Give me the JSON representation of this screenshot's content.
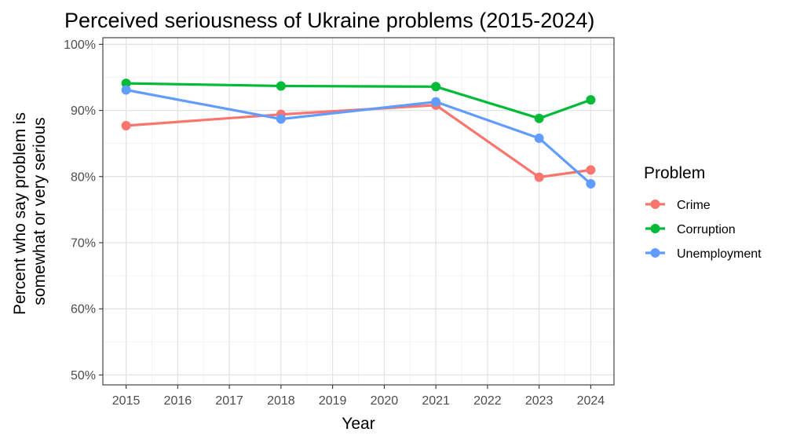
{
  "chart_data": {
    "type": "line",
    "title": "Perceived seriousness of Ukraine problems (2015-2024)",
    "xlabel": "Year",
    "ylabel_lines": [
      "Percent who say problem is",
      "somewhat or very serious"
    ],
    "x_ticks": [
      "2015",
      "2016",
      "2017",
      "2018",
      "2019",
      "2020",
      "2021",
      "2022",
      "2023",
      "2024"
    ],
    "y_ticks": [
      "50%",
      "60%",
      "70%",
      "80%",
      "90%",
      "100%"
    ],
    "xlim": [
      2014.55,
      2024.45
    ],
    "ylim": [
      0.485,
      1.01
    ],
    "grid": true,
    "legend": {
      "title": "Problem",
      "placement": "right"
    },
    "series": [
      {
        "name": "Crime",
        "color": "#F8766D",
        "x": [
          2015,
          2018,
          2021,
          2023,
          2024
        ],
        "values": [
          0.877,
          0.894,
          0.908,
          0.799,
          0.81
        ]
      },
      {
        "name": "Corruption",
        "color": "#00BA38",
        "x": [
          2015,
          2018,
          2021,
          2023,
          2024
        ],
        "values": [
          0.941,
          0.937,
          0.936,
          0.888,
          0.916
        ]
      },
      {
        "name": "Unemployment",
        "color": "#619CFF",
        "x": [
          2015,
          2018,
          2021,
          2023,
          2024
        ],
        "values": [
          0.931,
          0.887,
          0.913,
          0.858,
          0.789
        ]
      }
    ]
  }
}
